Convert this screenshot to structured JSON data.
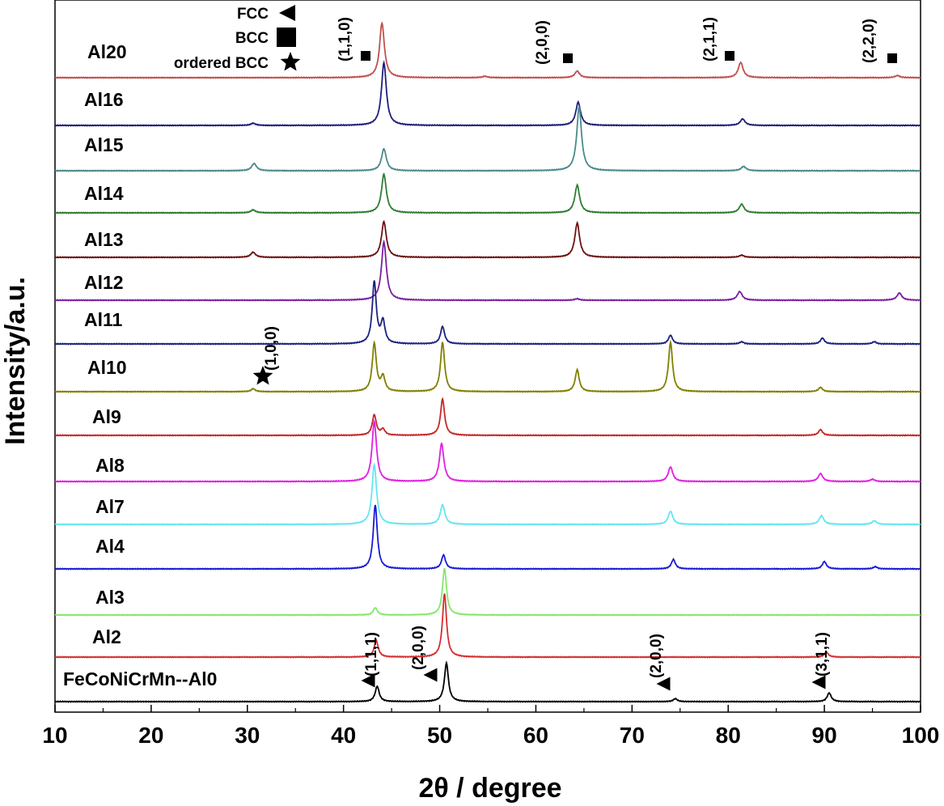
{
  "chart_data": {
    "type": "line",
    "xlabel": "2θ / degree",
    "ylabel": "Intensity/a.u.",
    "xlim": [
      10,
      100
    ],
    "xticks": [
      10,
      20,
      30,
      40,
      50,
      60,
      70,
      80,
      90,
      100
    ],
    "legend": [
      {
        "label": "FCC",
        "marker": "triangle-left"
      },
      {
        "label": "BCC",
        "marker": "square"
      },
      {
        "label": "ordered BCC",
        "marker": "star"
      }
    ],
    "series": [
      {
        "name": "Al20",
        "color": "#c0504d",
        "peaks": [
          [
            44.0,
            75
          ],
          [
            54.7,
            2
          ],
          [
            64.3,
            9
          ],
          [
            81.3,
            21
          ],
          [
            97.6,
            3
          ]
        ],
        "width": 0.3
      },
      {
        "name": "Al16",
        "color": "#1f1f7a",
        "peaks": [
          [
            30.6,
            3
          ],
          [
            44.2,
            86
          ],
          [
            64.4,
            32
          ],
          [
            81.5,
            9
          ]
        ],
        "width": 0.3
      },
      {
        "name": "Al15",
        "color": "#4a8a8a",
        "peaks": [
          [
            30.7,
            10
          ],
          [
            44.2,
            30
          ],
          [
            64.5,
            88
          ],
          [
            81.6,
            6
          ]
        ],
        "width": 0.3
      },
      {
        "name": "Al14",
        "color": "#2e7d32",
        "peaks": [
          [
            30.6,
            4
          ],
          [
            44.2,
            53
          ],
          [
            64.3,
            38
          ],
          [
            81.4,
            12
          ]
        ],
        "width": 0.3
      },
      {
        "name": "Al13",
        "color": "#6d1212",
        "peaks": [
          [
            30.6,
            7
          ],
          [
            44.2,
            49
          ],
          [
            64.3,
            47
          ],
          [
            81.4,
            3
          ]
        ],
        "width": 0.3
      },
      {
        "name": "Al12",
        "color": "#7b1fa2",
        "peaks": [
          [
            44.2,
            80
          ],
          [
            64.3,
            2
          ],
          [
            81.2,
            12
          ],
          [
            97.8,
            10
          ]
        ],
        "width": 0.3
      },
      {
        "name": "Al11",
        "color": "#1a237e",
        "peaks": [
          [
            43.2,
            85
          ],
          [
            44.1,
            30
          ],
          [
            50.3,
            24
          ],
          [
            74.0,
            12
          ],
          [
            81.4,
            3
          ],
          [
            89.8,
            8
          ],
          [
            95.2,
            3
          ]
        ],
        "width": 0.25
      },
      {
        "name": "Al10",
        "color": "#808000",
        "peaks": [
          [
            30.6,
            4
          ],
          [
            43.2,
            66
          ],
          [
            44.1,
            20
          ],
          [
            50.3,
            68
          ],
          [
            64.3,
            30
          ],
          [
            74.0,
            68
          ],
          [
            89.6,
            6
          ]
        ],
        "width": 0.25
      },
      {
        "name": "Al9",
        "color": "#c62828",
        "peaks": [
          [
            43.2,
            28
          ],
          [
            44.1,
            8
          ],
          [
            50.3,
            50
          ],
          [
            89.6,
            8
          ]
        ],
        "width": 0.25
      },
      {
        "name": "Al8",
        "color": "#e020e0",
        "peaks": [
          [
            43.2,
            82
          ],
          [
            50.2,
            52
          ],
          [
            74.0,
            20
          ],
          [
            89.6,
            11
          ],
          [
            95.0,
            3
          ]
        ],
        "width": 0.28
      },
      {
        "name": "Al7",
        "color": "#66e6f2",
        "peaks": [
          [
            43.2,
            82
          ],
          [
            50.3,
            27
          ],
          [
            74.0,
            18
          ],
          [
            89.7,
            12
          ],
          [
            95.2,
            5
          ]
        ],
        "width": 0.28
      },
      {
        "name": "Al4",
        "color": "#1a1ad4",
        "peaks": [
          [
            43.3,
            88
          ],
          [
            50.4,
            19
          ],
          [
            74.3,
            13
          ],
          [
            90.0,
            10
          ],
          [
            95.3,
            3
          ]
        ],
        "width": 0.25
      },
      {
        "name": "Al3",
        "color": "#86e86b",
        "peaks": [
          [
            43.3,
            10
          ],
          [
            50.5,
            64
          ]
        ],
        "width": 0.25
      },
      {
        "name": "Al2",
        "color": "#d32f2f",
        "peaks": [
          [
            43.4,
            23
          ],
          [
            50.5,
            87
          ],
          [
            90.2,
            7
          ]
        ],
        "width": 0.25
      },
      {
        "name": "FeCoNiCrMn--Al0",
        "color": "#000000",
        "peaks": [
          [
            43.5,
            21
          ],
          [
            50.7,
            53
          ],
          [
            74.5,
            4
          ],
          [
            90.5,
            12
          ]
        ],
        "width": 0.25
      }
    ],
    "annotations": [
      {
        "text": "(1,1,0)",
        "marker": "square",
        "x": 42.3,
        "series": "Al20"
      },
      {
        "text": "(2,0,0)",
        "marker": "square",
        "x": 63.4,
        "series": "Al20"
      },
      {
        "text": "(2,1,1)",
        "marker": "square",
        "x": 80.2,
        "series": "Al20"
      },
      {
        "text": "(2,2,0)",
        "marker": "square",
        "x": 97.2,
        "series": "Al20"
      },
      {
        "text": "(1,0,0)",
        "marker": "star",
        "x": 31.5,
        "series": "Al10"
      },
      {
        "text": "(1,1,1)",
        "marker": "triangle-left",
        "x": 42.5,
        "series": "FeCoNiCrMn--Al0"
      },
      {
        "text": "(2,0,0)",
        "marker": "triangle-left",
        "x": 48.8,
        "series": "FeCoNiCrMn--Al0"
      },
      {
        "text": "(2,0,0)",
        "marker": "triangle-left",
        "x": 72.8,
        "series": "FeCoNiCrMn--Al0"
      },
      {
        "text": "(3,1,1)",
        "marker": "triangle-left",
        "x": 89.0,
        "series": "FeCoNiCrMn--Al0"
      }
    ]
  }
}
